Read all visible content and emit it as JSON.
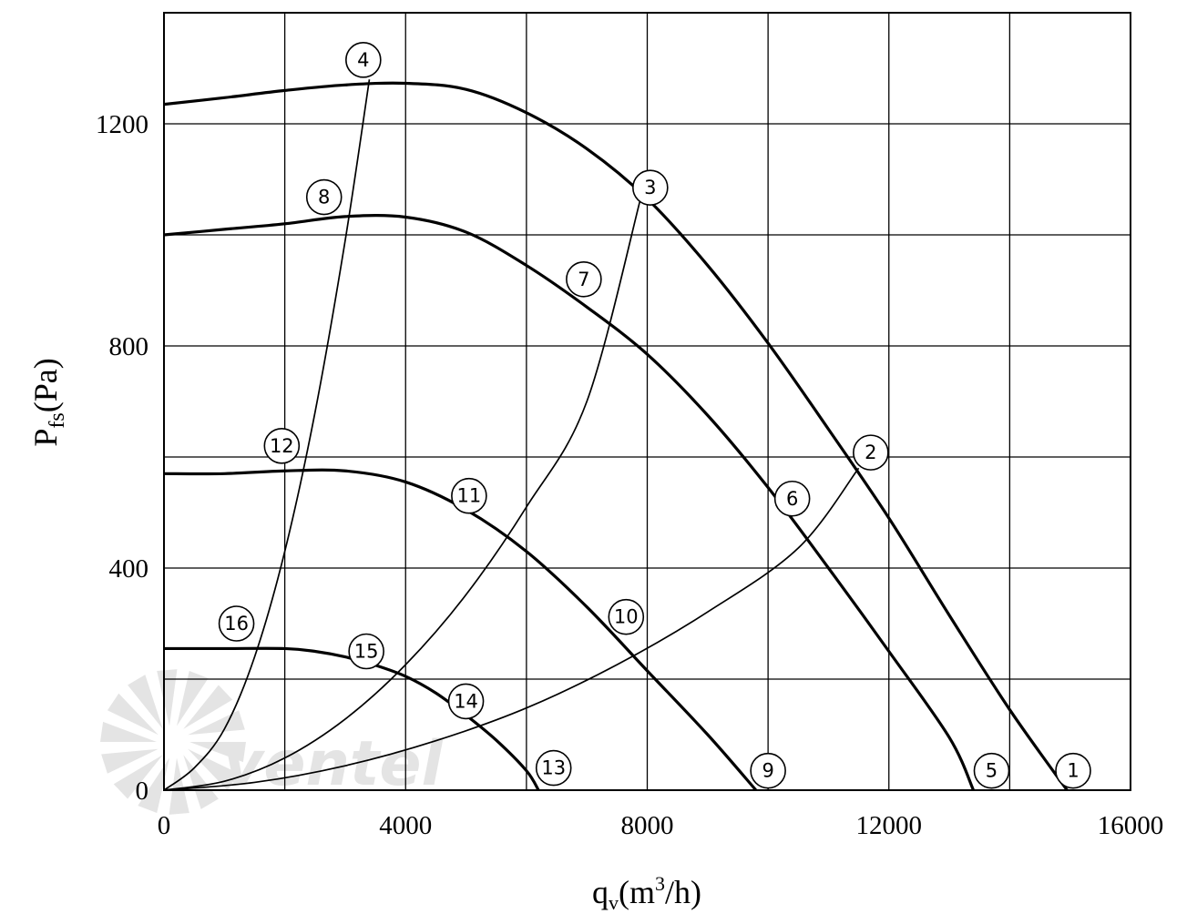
{
  "chart_data": {
    "type": "line",
    "xlabel": "q",
    "xlabel_sub": "v",
    "xlabel_rest": "(m",
    "xlabel_sup": "3",
    "xlabel_end": "/h)",
    "ylabel": "P",
    "ylabel_sub": "fs",
    "ylabel_rest": "(Pa)",
    "xlim": [
      0,
      16000
    ],
    "ylim": [
      0,
      1200
    ],
    "x_ticks": [
      0,
      4000,
      8000,
      12000,
      16000
    ],
    "x_tick_labels": [
      "0",
      "4000",
      "8000",
      "12000",
      "16000"
    ],
    "y_ticks": [
      0,
      400,
      800,
      1200
    ],
    "y_tick_labels": [
      "0",
      "400",
      "800",
      "1200"
    ],
    "x_grid": [
      2000,
      4000,
      6000,
      8000,
      10000,
      12000,
      14000
    ],
    "y_grid": [
      200,
      400,
      600,
      800,
      1000,
      1200
    ],
    "grid": true,
    "fan_curves": [
      {
        "label": "1",
        "points": [
          [
            0,
            1235
          ],
          [
            1000,
            1247
          ],
          [
            2000,
            1260
          ],
          [
            3000,
            1270
          ],
          [
            4000,
            1273
          ],
          [
            5000,
            1262
          ],
          [
            6000,
            1220
          ],
          [
            7000,
            1155
          ],
          [
            8000,
            1065
          ],
          [
            9000,
            945
          ],
          [
            10000,
            805
          ],
          [
            11000,
            650
          ],
          [
            12000,
            490
          ],
          [
            13000,
            315
          ],
          [
            14000,
            145
          ],
          [
            14950,
            0
          ]
        ]
      },
      {
        "label": "5",
        "points": [
          [
            0,
            1000
          ],
          [
            1000,
            1010
          ],
          [
            2000,
            1020
          ],
          [
            3000,
            1033
          ],
          [
            4000,
            1032
          ],
          [
            5000,
            1005
          ],
          [
            6000,
            945
          ],
          [
            7000,
            870
          ],
          [
            8000,
            785
          ],
          [
            9000,
            675
          ],
          [
            10000,
            545
          ],
          [
            11000,
            400
          ],
          [
            12000,
            250
          ],
          [
            13000,
            95
          ],
          [
            13400,
            0
          ]
        ]
      },
      {
        "label": "9",
        "points": [
          [
            0,
            570
          ],
          [
            1000,
            570
          ],
          [
            2000,
            575
          ],
          [
            3000,
            575
          ],
          [
            4000,
            555
          ],
          [
            5000,
            505
          ],
          [
            6000,
            430
          ],
          [
            7000,
            330
          ],
          [
            8000,
            215
          ],
          [
            9000,
            100
          ],
          [
            9800,
            0
          ]
        ]
      },
      {
        "label": "13",
        "points": [
          [
            0,
            255
          ],
          [
            1000,
            255
          ],
          [
            2000,
            255
          ],
          [
            2500,
            250
          ],
          [
            3000,
            240
          ],
          [
            3500,
            225
          ],
          [
            4000,
            205
          ],
          [
            4500,
            175
          ],
          [
            5000,
            135
          ],
          [
            5500,
            90
          ],
          [
            6000,
            35
          ],
          [
            6200,
            0
          ]
        ]
      }
    ],
    "system_curves": [
      {
        "label": "2",
        "points": [
          [
            0,
            0
          ],
          [
            1500,
            14
          ],
          [
            3000,
            44
          ],
          [
            4500,
            89
          ],
          [
            6000,
            148
          ],
          [
            7500,
            226
          ],
          [
            9000,
            321
          ],
          [
            10500,
            436
          ],
          [
            11500,
            580
          ]
        ]
      },
      {
        "label": "3",
        "points": [
          [
            0,
            0
          ],
          [
            1000,
            16
          ],
          [
            2000,
            58
          ],
          [
            3000,
            128
          ],
          [
            4000,
            226
          ],
          [
            5000,
            352
          ],
          [
            6000,
            510
          ],
          [
            7000,
            700
          ],
          [
            7900,
            1070
          ]
        ]
      },
      {
        "label": "4",
        "points": [
          [
            0,
            0
          ],
          [
            500,
            40
          ],
          [
            1000,
            110
          ],
          [
            1500,
            240
          ],
          [
            2000,
            430
          ],
          [
            2500,
            680
          ],
          [
            3000,
            990
          ],
          [
            3400,
            1280
          ]
        ]
      }
    ],
    "markers": [
      {
        "label": "1",
        "x": 15050,
        "y": 35
      },
      {
        "label": "2",
        "x": 11700,
        "y": 608
      },
      {
        "label": "3",
        "x": 8050,
        "y": 1085
      },
      {
        "label": "4",
        "x": 3300,
        "y": 1315
      },
      {
        "label": "5",
        "x": 13700,
        "y": 35
      },
      {
        "label": "6",
        "x": 10400,
        "y": 525
      },
      {
        "label": "7",
        "x": 6950,
        "y": 920
      },
      {
        "label": "8",
        "x": 2650,
        "y": 1068
      },
      {
        "label": "9",
        "x": 10000,
        "y": 35
      },
      {
        "label": "10",
        "x": 7650,
        "y": 312
      },
      {
        "label": "11",
        "x": 5050,
        "y": 530
      },
      {
        "label": "12",
        "x": 1950,
        "y": 620
      },
      {
        "label": "13",
        "x": 6450,
        "y": 40
      },
      {
        "label": "14",
        "x": 5000,
        "y": 160
      },
      {
        "label": "15",
        "x": 3350,
        "y": 250
      },
      {
        "label": "16",
        "x": 1200,
        "y": 300
      }
    ],
    "watermark_text": "ventel",
    "colors": {
      "line": "#000000",
      "grid": "#000000",
      "watermark": "#e4e4e4",
      "watermark_accent": "#d4e8f4"
    }
  }
}
